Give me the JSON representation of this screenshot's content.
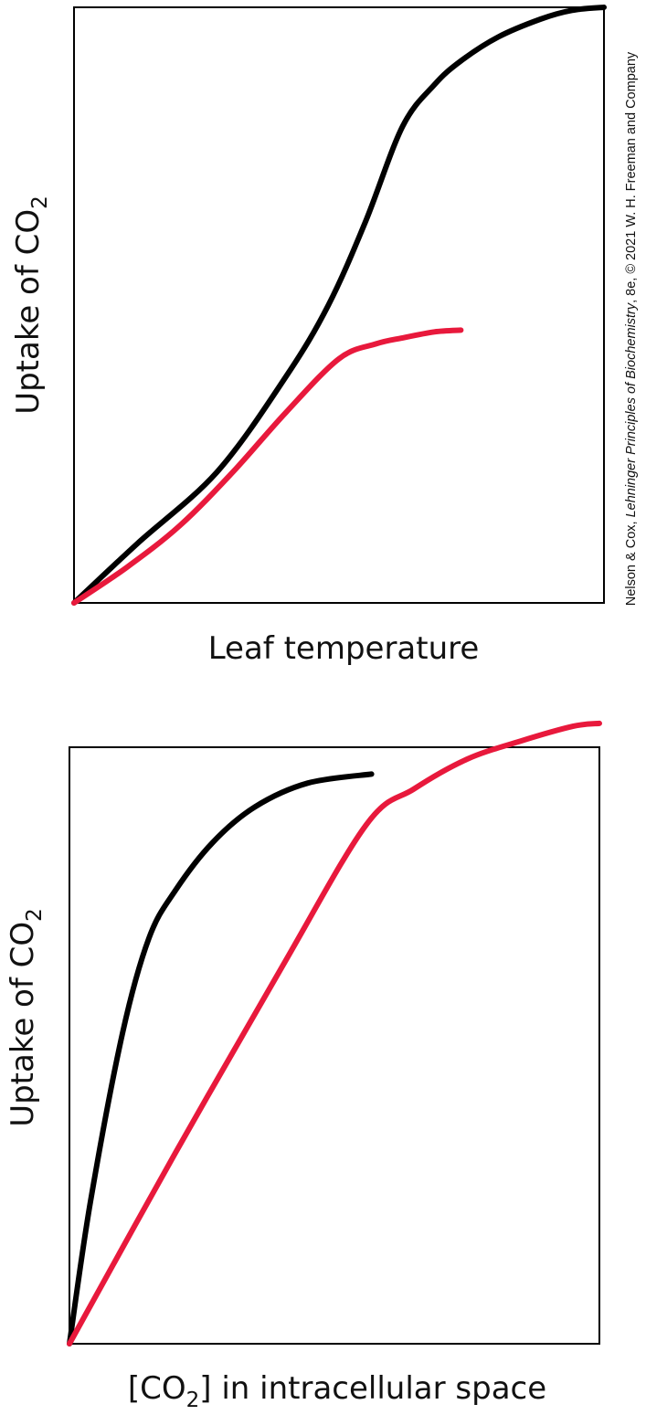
{
  "colors": {
    "black_series": "#000000",
    "red_series": "#e8193c",
    "frame": "#000000"
  },
  "credit": {
    "prefix": "Nelson & Cox, ",
    "title": "Lehninger Principles of Biochemistry",
    "suffix": ", 8e, © 2021 W. H. Freeman and Company"
  },
  "chart_data": [
    {
      "type": "line",
      "title": "",
      "xlabel": "Leaf temperature",
      "ylabel": {
        "main": "Uptake of CO",
        "subscript": "2"
      },
      "xlim": [
        0,
        100
      ],
      "ylim": [
        0,
        100
      ],
      "grid": false,
      "legend": "none",
      "series": [
        {
          "color": "#000000",
          "x": [
            0,
            12,
            27,
            40,
            48,
            55,
            62,
            68,
            73,
            80,
            88,
            94,
            100
          ],
          "y": [
            0,
            10,
            22,
            38,
            50,
            64,
            80,
            87,
            91,
            95,
            98,
            99.5,
            100
          ]
        },
        {
          "color": "#e8193c",
          "x": [
            0,
            10,
            20,
            30,
            40,
            50,
            57,
            62,
            68,
            73
          ],
          "y": [
            0,
            6,
            13,
            22,
            32,
            41,
            43.5,
            44.5,
            45.5,
            45.8
          ]
        }
      ]
    },
    {
      "type": "line",
      "title": "",
      "xlabel": {
        "pre": "[CO",
        "subscript": "2",
        "post": "] in intracellular space"
      },
      "ylabel": {
        "main": "Uptake of CO",
        "subscript": "2"
      },
      "xlim": [
        0,
        100
      ],
      "ylim": [
        0,
        100
      ],
      "grid": false,
      "legend": "none",
      "series": [
        {
          "color": "#000000",
          "x": [
            0,
            4,
            10,
            15,
            20,
            27,
            35,
            45,
            57
          ],
          "y": [
            0,
            24,
            52,
            68,
            76,
            84,
            90,
            94,
            95.5
          ]
        },
        {
          "color": "#e8193c",
          "x": [
            0,
            20,
            40,
            56,
            65,
            75,
            85,
            95,
            100
          ],
          "y": [
            0,
            32,
            63,
            87,
            93,
            98,
            101,
            103.5,
            104
          ]
        }
      ]
    }
  ]
}
